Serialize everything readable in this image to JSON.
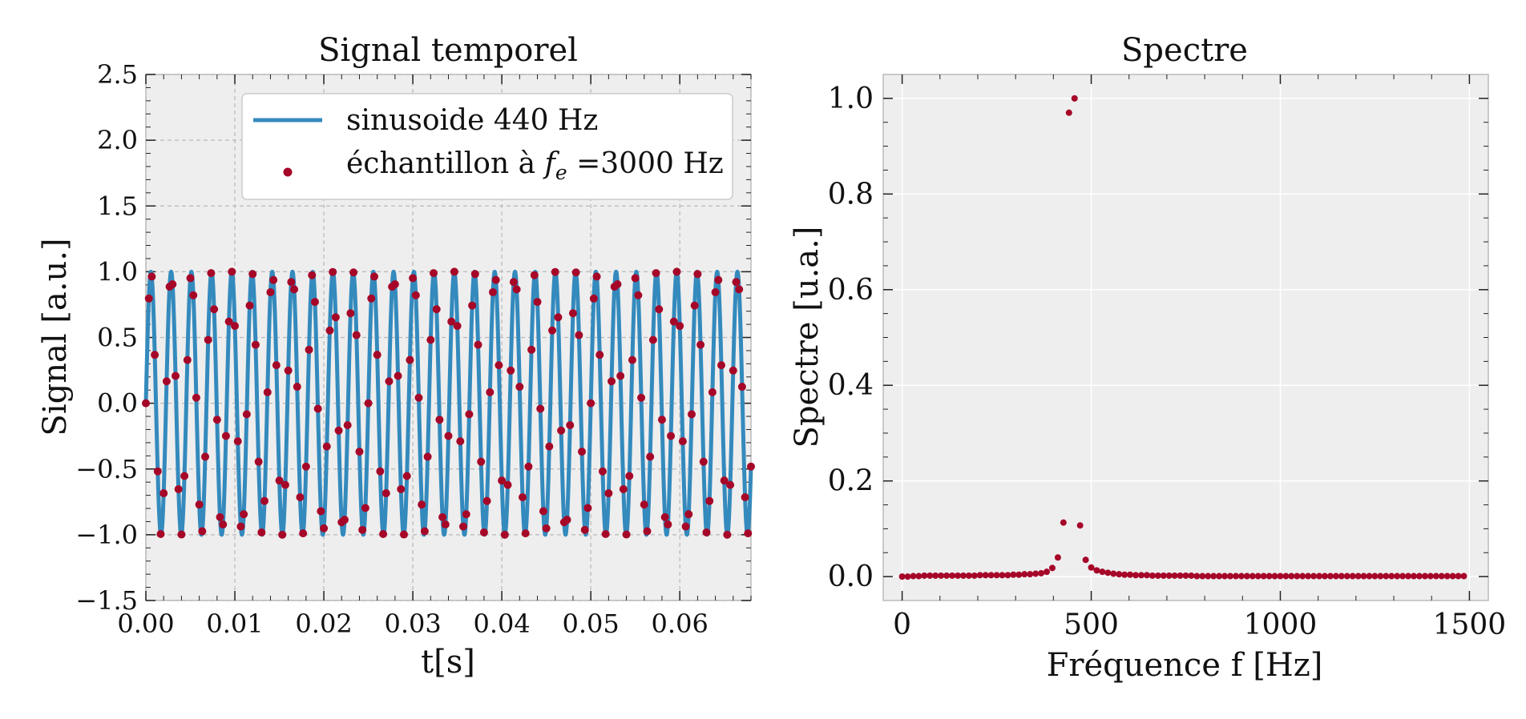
{
  "chart_data": [
    {
      "type": "line",
      "title": "Signal temporel",
      "xlabel": "t[s]",
      "ylabel": "Signal [a.u.]",
      "xlim": [
        0.0,
        0.068
      ],
      "ylim": [
        -1.5,
        2.5
      ],
      "xticks": [
        "0.00",
        "0.01",
        "0.02",
        "0.03",
        "0.04",
        "0.05",
        "0.06"
      ],
      "yticks": [
        "−1.5",
        "−1.0",
        "−0.5",
        "0.0",
        "0.5",
        "1.0",
        "1.5",
        "2.0",
        "2.5"
      ],
      "grid": true,
      "grid_style": "dashed",
      "legend_position": "top-right",
      "series": [
        {
          "name": "sinusoide 440 Hz",
          "kind": "line",
          "color": "#348ABD",
          "function": "sin(2*pi*440*t)",
          "frequency_hz": 440,
          "amplitude": 1.0,
          "t_range": [
            0.0,
            0.068
          ]
        },
        {
          "name": "échantillon à f_e =3000 Hz",
          "kind": "scatter",
          "color": "#A60628",
          "sampling_rate_hz": 3000,
          "function": "sin(2*pi*440*t)",
          "t_range": [
            0.0,
            0.068
          ]
        }
      ],
      "legend": {
        "line_label": "sinusoide 440 Hz",
        "points_label_prefix": "échantillon à ",
        "points_label_symbol": "f",
        "points_label_subscript": "e",
        "points_label_suffix": " =3000 Hz"
      }
    },
    {
      "type": "scatter",
      "title": "Spectre",
      "xlabel": "Fréquence f [Hz]",
      "ylabel": "Spectre [u.a.]",
      "xlim": [
        -50,
        1550
      ],
      "ylim": [
        -0.05,
        1.05
      ],
      "xticks": [
        "0",
        "500",
        "1000",
        "1500"
      ],
      "yticks": [
        "0.0",
        "0.2",
        "0.4",
        "0.6",
        "0.8",
        "1.0"
      ],
      "grid": true,
      "grid_style": "solid",
      "series": [
        {
          "name": "",
          "color": "#A60628",
          "x": [
            0,
            14.7,
            29.4,
            44.1,
            58.8,
            73.5,
            88.2,
            102.9,
            117.6,
            132.4,
            147.1,
            161.8,
            176.5,
            191.2,
            205.9,
            220.6,
            235.3,
            250.0,
            264.7,
            279.4,
            294.1,
            308.8,
            323.5,
            338.2,
            352.9,
            367.6,
            382.4,
            397.1,
            411.8,
            426.5,
            441.2,
            455.9,
            470.6,
            485.3,
            500.0,
            514.7,
            529.4,
            544.1,
            558.8,
            573.5,
            588.2,
            602.9,
            617.6,
            632.4,
            647.1,
            661.8,
            676.5,
            691.2,
            705.9,
            720.6,
            735.3,
            750.0,
            764.7,
            779.4,
            794.1,
            808.8,
            823.5,
            838.2,
            852.9,
            867.6,
            882.4,
            897.1,
            911.8,
            926.5,
            941.2,
            955.9,
            970.6,
            985.3,
            1000.0,
            1014.7,
            1029.4,
            1044.1,
            1058.8,
            1073.5,
            1088.2,
            1102.9,
            1117.6,
            1132.4,
            1147.1,
            1161.8,
            1176.5,
            1191.2,
            1205.9,
            1220.6,
            1235.3,
            1250.0,
            1264.7,
            1279.4,
            1294.1,
            1308.8,
            1323.5,
            1338.2,
            1352.9,
            1367.6,
            1382.4,
            1397.1,
            1411.8,
            1426.5,
            1441.2,
            1455.9,
            1470.6,
            1485.3
          ],
          "y": [
            0.0,
            0.0,
            0.001,
            0.001,
            0.002,
            0.002,
            0.002,
            0.002,
            0.002,
            0.002,
            0.002,
            0.002,
            0.002,
            0.002,
            0.003,
            0.003,
            0.003,
            0.003,
            0.003,
            0.003,
            0.004,
            0.004,
            0.005,
            0.005,
            0.006,
            0.007,
            0.01,
            0.018,
            0.04,
            0.113,
            0.97,
            1.0,
            0.107,
            0.035,
            0.019,
            0.013,
            0.01,
            0.008,
            0.006,
            0.005,
            0.004,
            0.004,
            0.003,
            0.003,
            0.003,
            0.002,
            0.002,
            0.002,
            0.002,
            0.002,
            0.002,
            0.002,
            0.002,
            0.001,
            0.001,
            0.001,
            0.001,
            0.001,
            0.001,
            0.001,
            0.001,
            0.001,
            0.001,
            0.001,
            0.001,
            0.001,
            0.001,
            0.001,
            0.001,
            0.001,
            0.001,
            0.001,
            0.001,
            0.001,
            0.001,
            0.001,
            0.001,
            0.001,
            0.001,
            0.001,
            0.001,
            0.001,
            0.001,
            0.001,
            0.001,
            0.001,
            0.001,
            0.001,
            0.001,
            0.001,
            0.001,
            0.001,
            0.001,
            0.001,
            0.001,
            0.001,
            0.001,
            0.001,
            0.001,
            0.001,
            0.001,
            0.001
          ]
        }
      ]
    }
  ]
}
